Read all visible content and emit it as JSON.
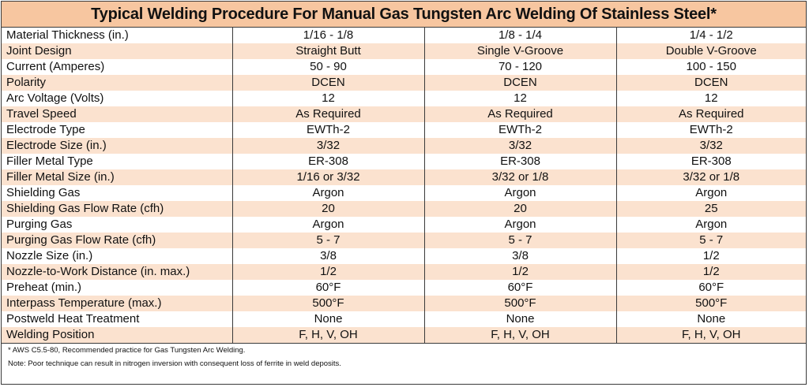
{
  "title": "Typical Welding Procedure For Manual Gas Tungsten Arc Welding Of Stainless Steel*",
  "rows": [
    {
      "label": "Material Thickness (in.)",
      "values": [
        "1/16 - 1/8",
        "1/8 - 1/4",
        "1/4 - 1/2"
      ]
    },
    {
      "label": "Joint Design",
      "values": [
        "Straight Butt",
        "Single V-Groove",
        "Double V-Groove"
      ]
    },
    {
      "label": "Current (Amperes)",
      "values": [
        "50 - 90",
        "70 - 120",
        "100 - 150"
      ]
    },
    {
      "label": "Polarity",
      "values": [
        "DCEN",
        "DCEN",
        "DCEN"
      ]
    },
    {
      "label": "Arc Voltage (Volts)",
      "values": [
        "12",
        "12",
        "12"
      ]
    },
    {
      "label": "Travel Speed",
      "values": [
        "As Required",
        "As Required",
        "As Required"
      ]
    },
    {
      "label": "Electrode Type",
      "values": [
        "EWTh-2",
        "EWTh-2",
        "EWTh-2"
      ]
    },
    {
      "label": "Electrode Size (in.)",
      "values": [
        "3/32",
        "3/32",
        "3/32"
      ]
    },
    {
      "label": "Filler Metal Type",
      "values": [
        "ER-308",
        "ER-308",
        "ER-308"
      ]
    },
    {
      "label": "Filler Metal Size (in.)",
      "values": [
        "1/16 or 3/32",
        "3/32 or 1/8",
        "3/32 or 1/8"
      ]
    },
    {
      "label": "Shielding Gas",
      "values": [
        "Argon",
        "Argon",
        "Argon"
      ]
    },
    {
      "label": "Shielding Gas Flow Rate (cfh)",
      "values": [
        "20",
        "20",
        "25"
      ]
    },
    {
      "label": "Purging Gas",
      "values": [
        "Argon",
        "Argon",
        "Argon"
      ]
    },
    {
      "label": "Purging Gas Flow Rate (cfh)",
      "values": [
        "5 - 7",
        "5 - 7",
        "5 - 7"
      ]
    },
    {
      "label": "Nozzle Size (in.)",
      "values": [
        "3/8",
        "3/8",
        "1/2"
      ]
    },
    {
      "label": "Nozzle-to-Work Distance (in. max.)",
      "values": [
        "1/2",
        "1/2",
        "1/2"
      ]
    },
    {
      "label": "Preheat (min.)",
      "values": [
        "60°F",
        "60°F",
        "60°F"
      ]
    },
    {
      "label": "Interpass Temperature (max.)",
      "values": [
        "500°F",
        "500°F",
        "500°F"
      ]
    },
    {
      "label": "Postweld Heat Treatment",
      "values": [
        "None",
        "None",
        "None"
      ]
    },
    {
      "label": "Welding Position",
      "values": [
        "F, H, V, OH",
        "F, H, V, OH",
        "F, H, V, OH"
      ]
    }
  ],
  "footnotes": {
    "reference": "* AWS C5.5-80, Recommended practice for Gas Tungsten Arc Welding.",
    "note": "Note: Poor technique can result in nitrogen inversion with consequent loss of ferrite in weld deposits."
  },
  "colors": {
    "header_bg": "#f7c6a0",
    "stripe_bg": "#fbe2cf",
    "border": "#3a3a3a"
  }
}
